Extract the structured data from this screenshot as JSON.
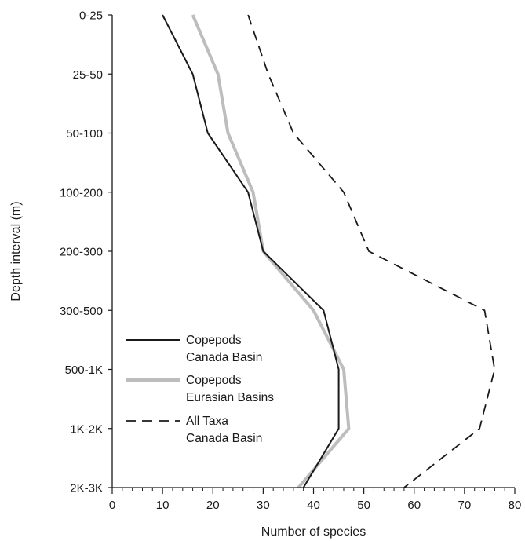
{
  "chart_data": {
    "type": "line",
    "xlabel": "Number of species",
    "ylabel": "Depth interval (m)",
    "xlim": [
      0,
      80
    ],
    "x_ticks": [
      0,
      10,
      20,
      30,
      40,
      50,
      60,
      70,
      80
    ],
    "categories": [
      "0-25",
      "25-50",
      "50-100",
      "100-200",
      "200-300",
      "300-500",
      "500-1K",
      "1K-2K",
      "2K-3K"
    ],
    "grid": false,
    "legend_position": "bottom-left",
    "series": [
      {
        "name": "Copepods Canada Basin",
        "legend_lines": [
          "Copepods",
          "Canada Basin"
        ],
        "style": "solid",
        "color": "#1a1a1a",
        "values": [
          10,
          16,
          19,
          27,
          30,
          42,
          45,
          45,
          38
        ]
      },
      {
        "name": "Copepods Eurasian Basins",
        "legend_lines": [
          "Copepods",
          "Eurasian Basins"
        ],
        "style": "solid-thick",
        "color": "#bdbdbd",
        "values": [
          16,
          21,
          23,
          28,
          30,
          40,
          46,
          47,
          37
        ]
      },
      {
        "name": "All Taxa Canada Basin",
        "legend_lines": [
          "All Taxa",
          "Canada Basin"
        ],
        "style": "dashed",
        "color": "#1a1a1a",
        "values": [
          27,
          31,
          36,
          46,
          51,
          74,
          76,
          73,
          58
        ]
      }
    ]
  }
}
